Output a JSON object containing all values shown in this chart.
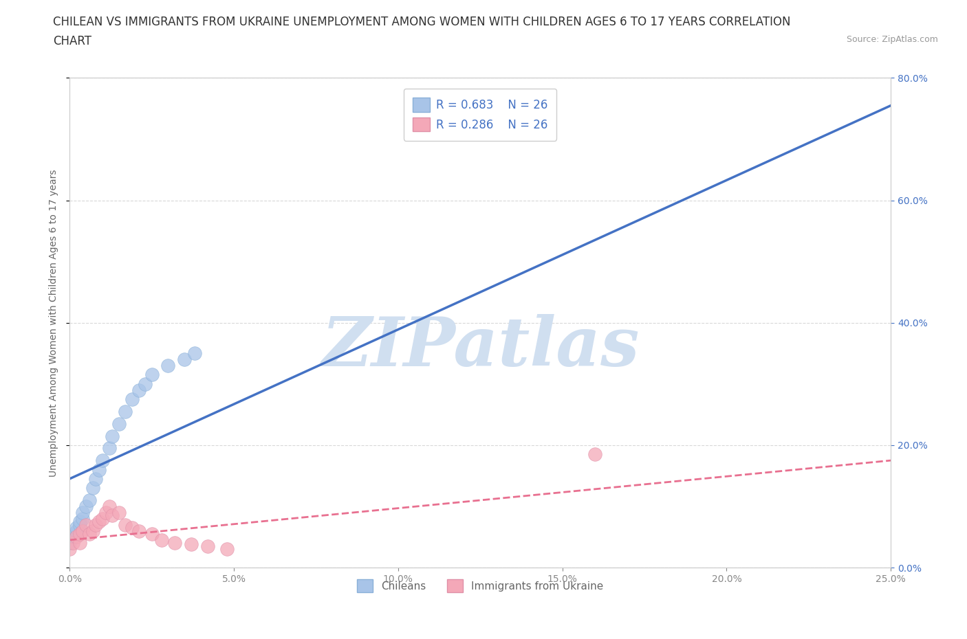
{
  "title_line1": "CHILEAN VS IMMIGRANTS FROM UKRAINE UNEMPLOYMENT AMONG WOMEN WITH CHILDREN AGES 6 TO 17 YEARS CORRELATION",
  "title_line2": "CHART",
  "source": "Source: ZipAtlas.com",
  "ylabel": "Unemployment Among Women with Children Ages 6 to 17 years",
  "xlim": [
    0.0,
    0.25
  ],
  "ylim": [
    0.0,
    0.8
  ],
  "R_chilean": 0.683,
  "R_ukraine": 0.286,
  "N_chilean": 26,
  "N_ukraine": 26,
  "chilean_color": "#a8c4e8",
  "ukraine_color": "#f4a8b8",
  "chilean_line_color": "#4472c4",
  "ukraine_line_color": "#e87090",
  "legend_label_chileans": "Chileans",
  "legend_label_ukraine": "Immigrants from Ukraine",
  "watermark": "ZIPatlas",
  "watermark_color": "#d0dff0",
  "chilean_x": [
    0.0,
    0.001,
    0.001,
    0.002,
    0.002,
    0.003,
    0.003,
    0.004,
    0.004,
    0.005,
    0.006,
    0.007,
    0.008,
    0.009,
    0.01,
    0.012,
    0.013,
    0.015,
    0.017,
    0.019,
    0.021,
    0.023,
    0.025,
    0.03,
    0.035,
    0.038
  ],
  "chilean_y": [
    0.04,
    0.05,
    0.055,
    0.06,
    0.065,
    0.07,
    0.075,
    0.08,
    0.09,
    0.1,
    0.11,
    0.13,
    0.145,
    0.16,
    0.175,
    0.195,
    0.215,
    0.235,
    0.255,
    0.275,
    0.29,
    0.3,
    0.315,
    0.33,
    0.34,
    0.35
  ],
  "ukraine_x": [
    0.0,
    0.001,
    0.002,
    0.003,
    0.003,
    0.004,
    0.005,
    0.006,
    0.007,
    0.008,
    0.009,
    0.01,
    0.011,
    0.012,
    0.013,
    0.015,
    0.017,
    0.019,
    0.021,
    0.025,
    0.028,
    0.032,
    0.037,
    0.042,
    0.048,
    0.16
  ],
  "ukraine_y": [
    0.03,
    0.04,
    0.05,
    0.04,
    0.055,
    0.06,
    0.07,
    0.055,
    0.06,
    0.07,
    0.075,
    0.08,
    0.09,
    0.1,
    0.085,
    0.09,
    0.07,
    0.065,
    0.06,
    0.055,
    0.045,
    0.04,
    0.038,
    0.035,
    0.03,
    0.185
  ],
  "background_color": "#ffffff",
  "grid_color": "#d8d8d8",
  "title_fontsize": 12,
  "label_fontsize": 10,
  "tick_fontsize": 10,
  "legend_fontsize": 12,
  "chilean_line_intercept": 0.145,
  "chilean_line_slope": 2.44,
  "ukraine_line_intercept": 0.045,
  "ukraine_line_slope": 0.52
}
